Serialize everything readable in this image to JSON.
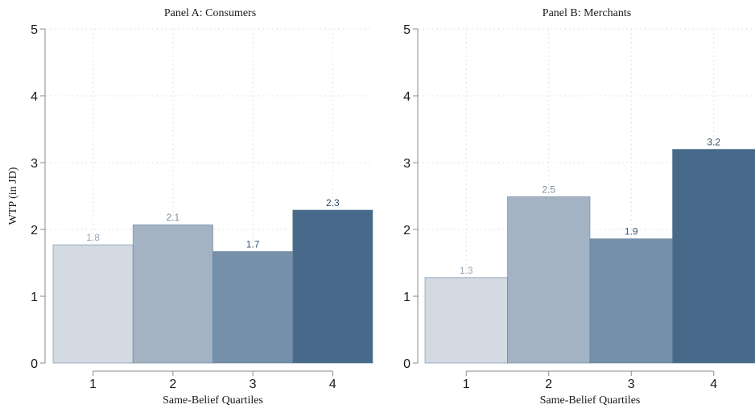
{
  "chart_data": [
    {
      "type": "bar",
      "title": "Panel A: Consumers",
      "xlabel": "Same-Belief Quartiles",
      "ylabel": "WTP (in JD)",
      "categories": [
        "1",
        "2",
        "3",
        "4"
      ],
      "values": [
        1.77,
        2.07,
        1.67,
        2.29
      ],
      "data_labels": [
        "1.8",
        "2.1",
        "1.7",
        "2.3"
      ],
      "yticks": [
        "0",
        "1",
        "2",
        "3",
        "4",
        "5"
      ],
      "ylim": [
        0,
        5
      ],
      "grid": true,
      "colors": [
        "#d3dae2",
        "#a3b3c3",
        "#7590a8",
        "#476a8a"
      ],
      "label_colors": [
        "#9aa8b6",
        "#7a8ea2",
        "#3e5a75",
        "#2d4c6a"
      ]
    },
    {
      "type": "bar",
      "title": "Panel B: Merchants",
      "xlabel": "Same-Belief Quartiles",
      "ylabel": "",
      "categories": [
        "1",
        "2",
        "3",
        "4"
      ],
      "values": [
        1.28,
        2.49,
        1.86,
        3.2
      ],
      "data_labels": [
        "1.3",
        "2.5",
        "1.9",
        "3.2"
      ],
      "yticks": [
        "0",
        "1",
        "2",
        "3",
        "4",
        "5"
      ],
      "ylim": [
        0,
        5
      ],
      "grid": true,
      "colors": [
        "#d3dae2",
        "#a3b3c3",
        "#7590a8",
        "#476a8a"
      ],
      "label_colors": [
        "#9aa8b6",
        "#7a8ea2",
        "#3e5a75",
        "#2d4c6a"
      ]
    }
  ]
}
